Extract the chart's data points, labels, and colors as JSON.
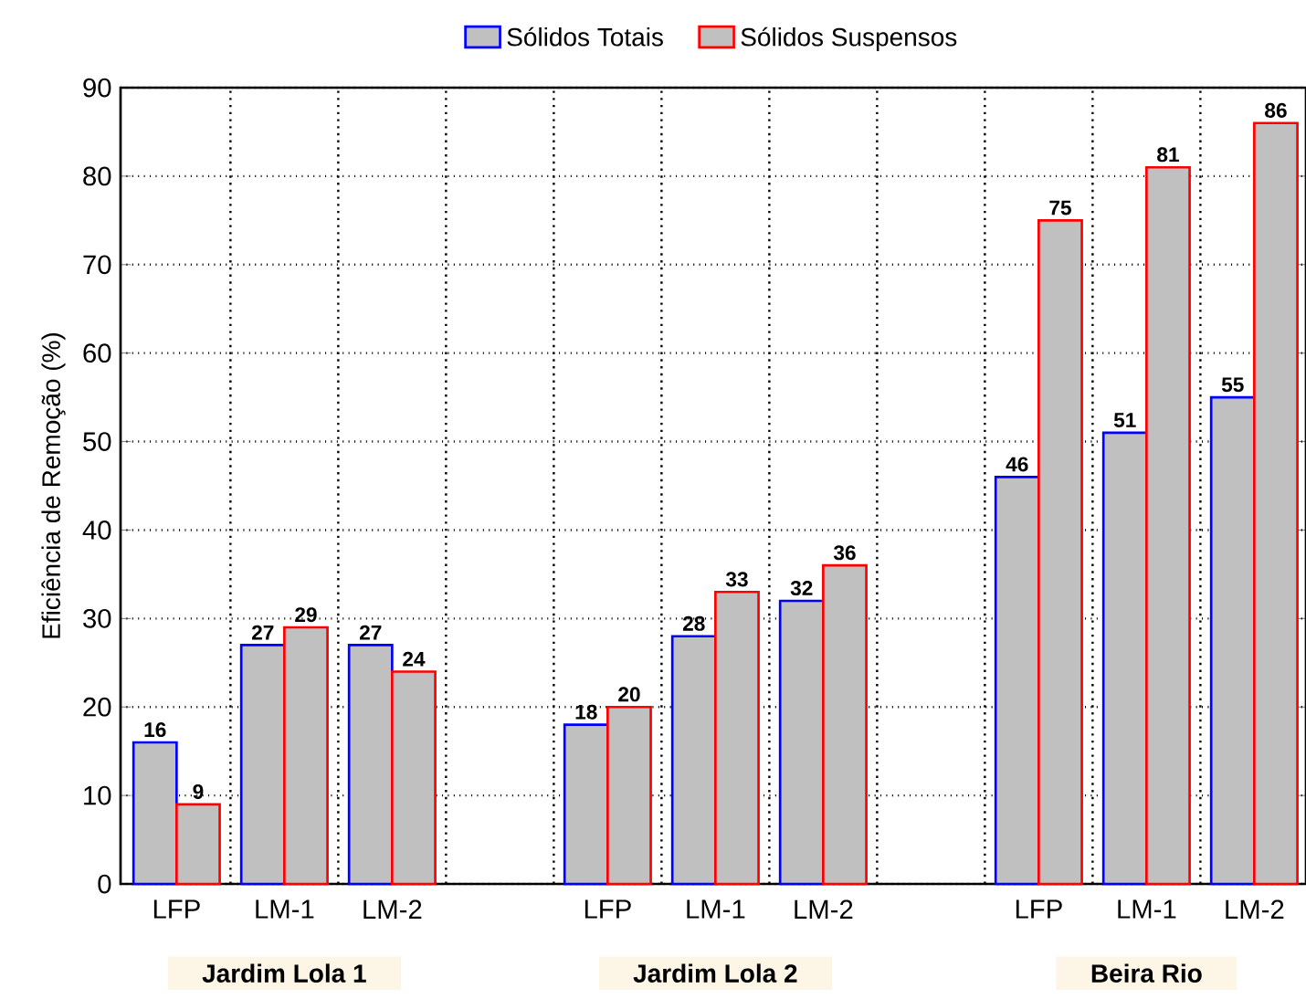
{
  "chart_data": {
    "type": "bar",
    "ylabel": "Eficiência de Remoção (%)",
    "categories": [
      "LFP",
      "LM-1",
      "LM-2",
      null,
      "LFP",
      "LM-1",
      "LM-2",
      null,
      "LFP",
      "LM-1",
      "LM-2"
    ],
    "series": [
      {
        "name": "Sólidos Totais",
        "color": "#0000ff",
        "values": [
          16,
          27,
          27,
          null,
          18,
          28,
          32,
          null,
          46,
          51,
          55
        ]
      },
      {
        "name": "Sólidos Suspensos",
        "color": "#ff0000",
        "values": [
          9,
          29,
          24,
          null,
          20,
          33,
          36,
          null,
          75,
          81,
          86
        ]
      }
    ],
    "ylim": [
      0,
      90
    ],
    "yticks": [
      0,
      10,
      20,
      30,
      40,
      50,
      60,
      70,
      80,
      90
    ],
    "data_labels": true,
    "grid": true,
    "legend": "top",
    "annotations": [
      "Jardim Lola 1",
      "Jardim Lola 2",
      "Beira Rio"
    ]
  }
}
